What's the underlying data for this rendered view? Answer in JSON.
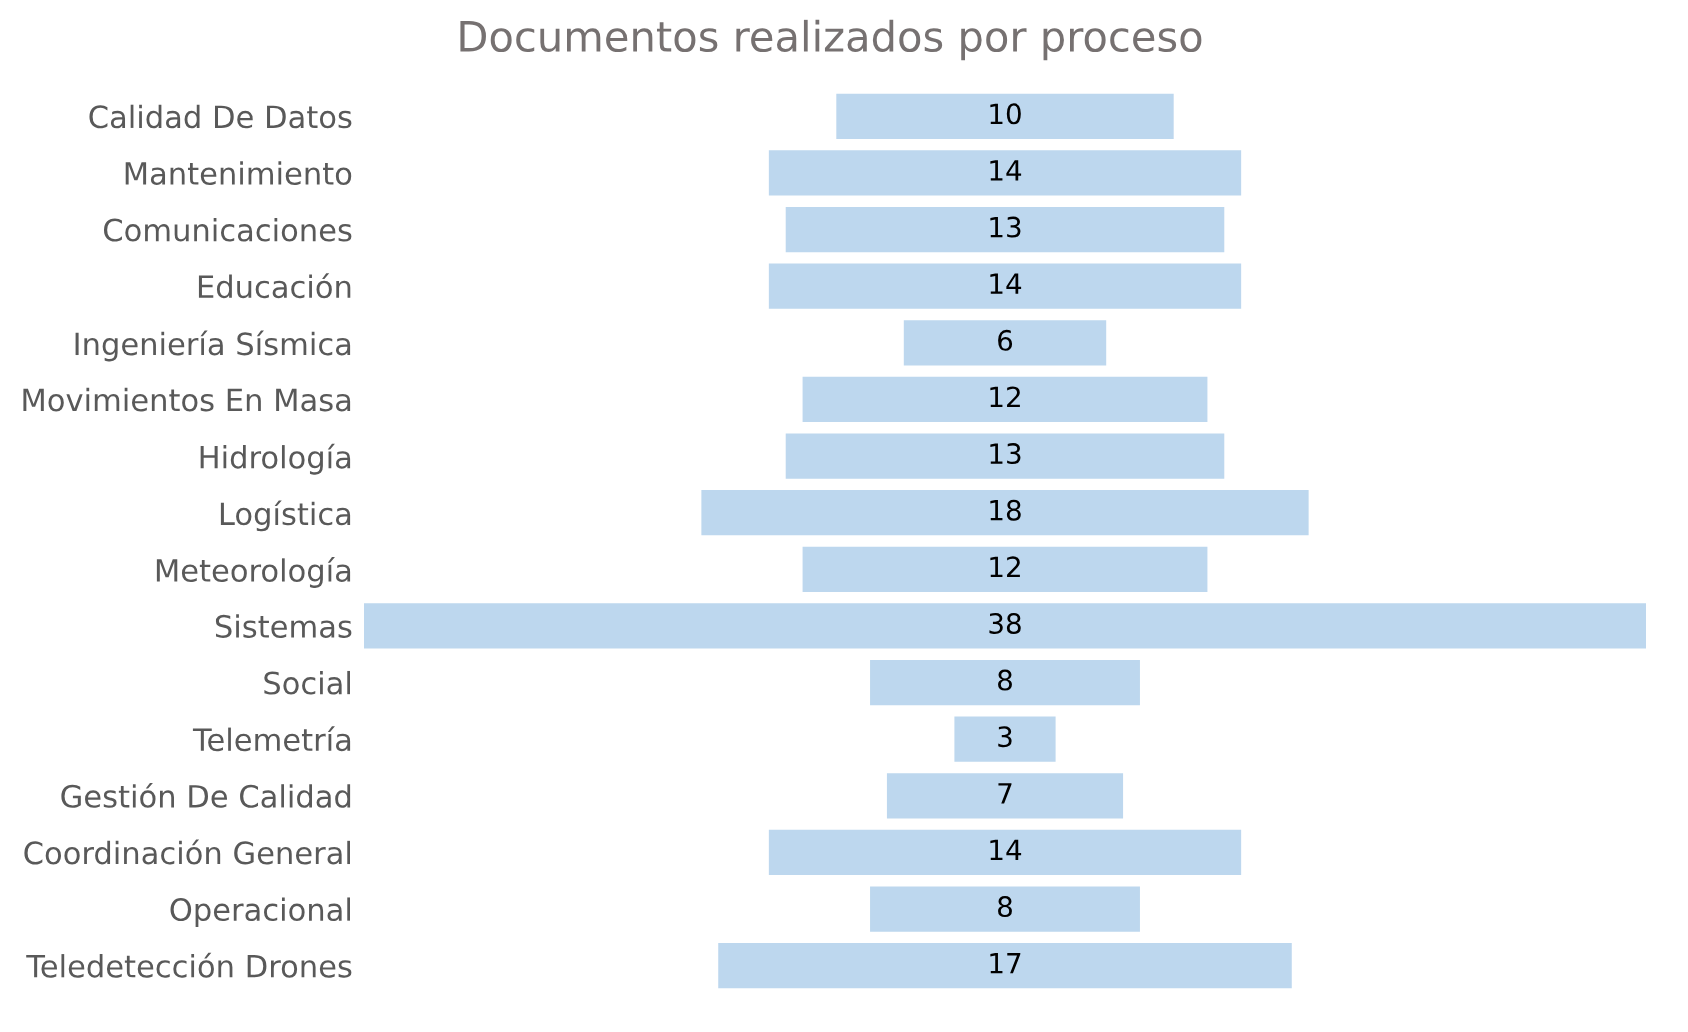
{
  "chart_data": {
    "type": "other",
    "title": "Documentos realizados por proceso",
    "categories": [
      "Calidad De Datos",
      "Mantenimiento",
      "Comunicaciones",
      "Educación",
      "Ingeniería Sísmica",
      "Movimientos En Masa",
      "Hidrología",
      "Logística",
      "Meteorología",
      "Sistemas",
      "Social",
      "Telemetría",
      "Gestión De Calidad",
      "Coordinación General",
      "Operacional",
      "Teledetección Drones"
    ],
    "values": [
      10,
      14,
      13,
      14,
      6,
      12,
      13,
      18,
      12,
      38,
      8,
      3,
      7,
      14,
      8,
      17
    ],
    "color": "#bdd7ee",
    "data_labels": true
  }
}
